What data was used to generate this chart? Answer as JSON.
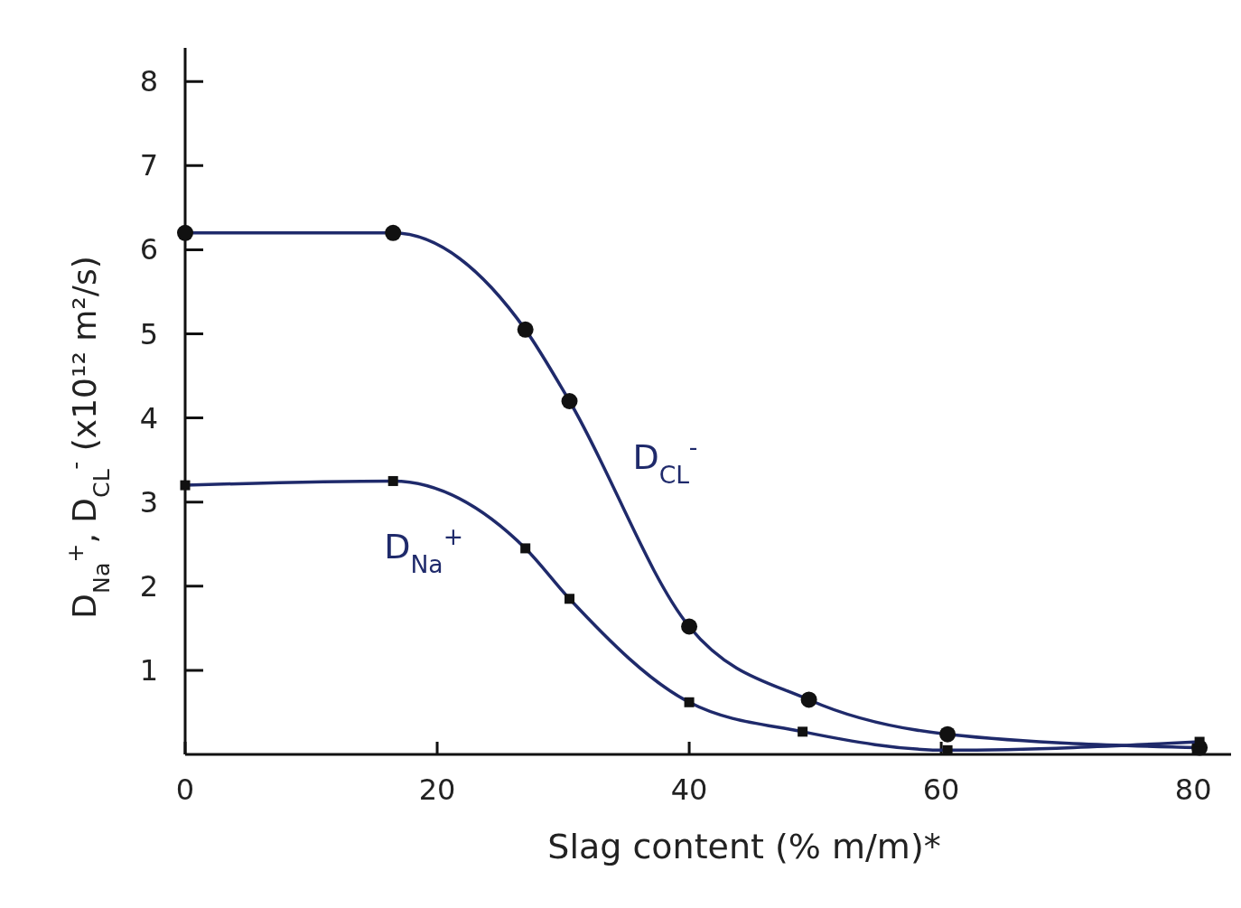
{
  "chart_data": {
    "type": "line",
    "xlabel": "Slag content (% m/m)*",
    "ylabel": "D$_{Na}$$^{+}$, D$_{CL}$$^{-}$ (x10¹² m²/s)",
    "xlim": [
      0,
      83
    ],
    "xticks": [
      0,
      20,
      40,
      60,
      80
    ],
    "ylim": [
      0,
      8.4
    ],
    "yticks": [
      1,
      2,
      3,
      4,
      5,
      6,
      7,
      8
    ],
    "grid": false,
    "series": [
      {
        "name": "D$_{CL}$$^{-}$",
        "color": "#1f2a6b",
        "marker": "circle",
        "x": [
          0,
          16.5,
          27,
          30.5,
          40,
          49.5,
          60.5,
          80.5
        ],
        "values": [
          6.2,
          6.2,
          5.05,
          4.2,
          1.52,
          0.65,
          0.24,
          0.08
        ]
      },
      {
        "name": "D$_{Na}$$^{+}$",
        "color": "#1f2a6b",
        "marker": "square",
        "x": [
          0,
          16.5,
          27,
          30.5,
          40,
          49,
          60.5,
          80.5
        ],
        "values": [
          3.2,
          3.25,
          2.45,
          1.85,
          0.62,
          0.27,
          0.05,
          0.15
        ]
      }
    ]
  }
}
